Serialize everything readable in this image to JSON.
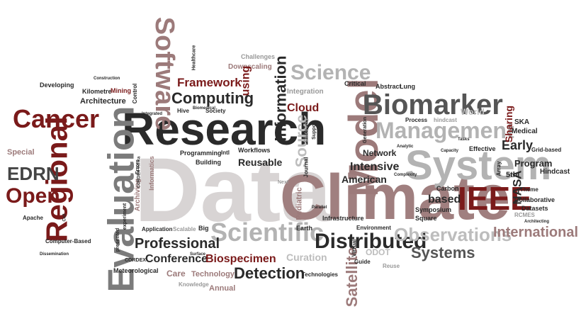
{
  "words": [
    "Data",
    "Climate",
    "Research",
    "Evaluation",
    "Model",
    "System",
    "Management",
    "Biomarker",
    "Regional",
    "IEEE",
    "Software",
    "Scientific",
    "Cancer",
    "Open",
    "Distributed",
    "Information",
    "Science",
    "Computing",
    "Framework",
    "EDRN",
    "Observations",
    "International",
    "Systems",
    "Detection",
    "Professional",
    "Conference",
    "Biospecimen",
    "Satellite",
    "Source",
    "Cloud",
    "Intensive",
    "Network",
    "American",
    "based",
    "Early",
    "Program",
    "NASA",
    "Sharing",
    "Medical",
    "SKA",
    "Hindcast",
    "5th",
    "Theme",
    "Collaborative",
    "Datasets",
    "Architecture",
    "Kilometre",
    "Mining",
    "Control",
    "Downscaling",
    "Challenges",
    "Healthcare",
    "using",
    "Society",
    "Hive",
    "Integration",
    "Critical",
    "Abstract",
    "Lung",
    "World",
    "Process",
    "hindcast",
    "Effective",
    "Grid-based",
    "Array",
    "Square",
    "Symposium",
    "Carbon",
    "Infrastructure",
    "Environment",
    "Earth",
    "Pediatric",
    "Next",
    "Journal",
    "Reusable",
    "Workflows",
    "Building",
    "Programming",
    "Intl",
    "Archiving",
    "Informatics",
    "Errors",
    "Special",
    "Developing",
    "Apache",
    "Computer-Based",
    "presented",
    "experiment",
    "CORDEX-Africa",
    "Application",
    "Scalable",
    "Big",
    "Care",
    "Technology",
    "Annual",
    "Knowledge",
    "Meteorological",
    "CORDEX",
    "Curation",
    "ODOT",
    "Reuse",
    "Technologies",
    "Guide",
    "Virtual",
    "Support",
    "Generation",
    "Discovery",
    "Tasks",
    "Capacity",
    "RCMES",
    "Architecting",
    "Analytic",
    "Complexity",
    "Cell",
    "Dissemination",
    "Integrated",
    "Construction",
    "Surface",
    "Biomedical",
    "Parallel"
  ]
}
